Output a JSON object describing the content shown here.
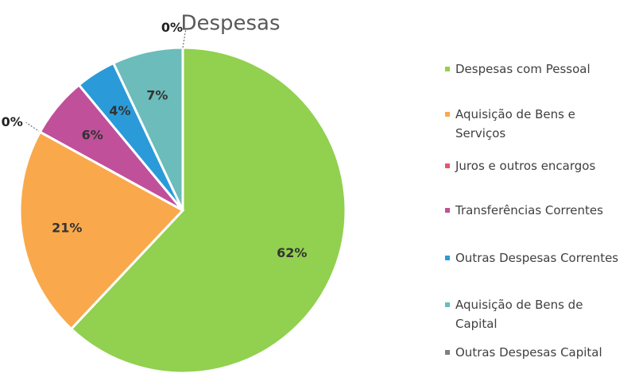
{
  "chart_data": {
    "type": "pie",
    "title": "Despesas",
    "categories": [
      "Despesas com Pessoal",
      "Aquisição de Bens e Serviços",
      "Juros e outros encargos",
      "Transferências Correntes",
      "Outras Despesas Correntes",
      "Aquisição de Bens de Capital",
      "Outras Despesas Capital"
    ],
    "values": [
      62,
      21,
      0,
      6,
      4,
      7,
      0
    ],
    "value_labels": [
      "62%",
      "21%",
      "0%",
      "6%",
      "4%",
      "7%",
      "0%"
    ],
    "colors": [
      "#92d050",
      "#f9a94b",
      "#e8556b",
      "#c0509a",
      "#2a9bd8",
      "#6bbcba",
      "#7f7f7f"
    ],
    "legend": "right"
  }
}
